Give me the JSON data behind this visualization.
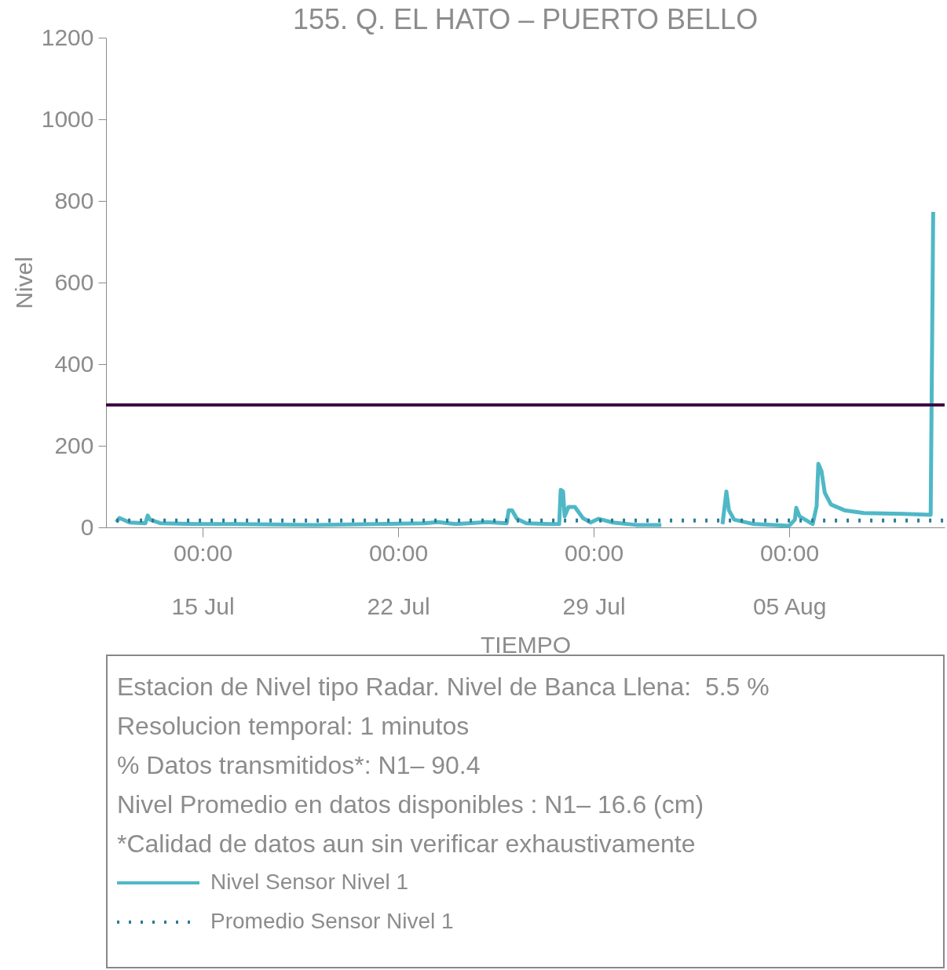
{
  "chart_data": {
    "type": "line",
    "title": "155. Q. EL HATO – PUERTO BELLO",
    "xlabel": "TIEMPO",
    "ylabel": "Nivel",
    "x": [
      "--07-11T21:50",
      "--07-12T00:30",
      "--07-12T09:20",
      "--07-12T22:50",
      "--07-13T00:50",
      "--07-13T02:50",
      "--07-13T12:10",
      "--07-14T18:40",
      "--07-16T04:20",
      "--07-18T23:50",
      "--07-21T05:50",
      "--07-22T22:20",
      "--07-23T10:20",
      "--07-24T01:10",
      "--07-25T04:20",
      "--07-25T21:10",
      "--07-25T23:00",
      "--07-26T01:50",
      "--07-26T06:00",
      "--07-26T14:00",
      "--07-27T10:20",
      "--07-27T18:20",
      "--07-27T19:40",
      "--07-27T21:40",
      "--07-27T23:00",
      "--07-28T02:20",
      "--07-28T07:50",
      "--07-28T14:40",
      "--07-28T21:20",
      "--07-29T04:10",
      "--07-29T16:20",
      "--07-30T12:30",
      "--07-31T10:05",
      "--08-01T08:20",
      "--08-02T14:40",
      "--08-02T18:00",
      "--08-02T20:10",
      "--08-03T00:40",
      "--08-03T17:40",
      "--08-05T00:00",
      "--08-05T04:50",
      "--08-05T06:00",
      "--08-05T08:50",
      "--08-05T20:10",
      "--08-05T23:30",
      "--08-06T01:00",
      "--08-06T03:40",
      "--08-06T06:30",
      "--08-06T11:50",
      "--08-06T23:20",
      "--08-07T16:10",
      "--08-09T02:00",
      "--08-10T01:30",
      "--08-10T03:40"
    ],
    "series": [
      {
        "name": "Nivel Sensor Nivel 1",
        "color": "#4fb8c6",
        "line_style": "solid",
        "values": [
          13,
          23,
          12,
          10,
          29,
          19,
          10,
          8,
          8,
          6,
          8,
          10,
          13,
          8,
          13,
          10,
          42,
          42,
          21,
          10,
          8,
          8,
          92,
          88,
          27,
          50,
          50,
          23,
          12,
          21,
          12,
          6,
          6,
          null,
          8,
          88,
          42,
          19,
          8,
          4,
          19,
          48,
          27,
          8,
          52,
          156,
          138,
          85,
          56,
          42,
          35,
          33,
          31,
          773
        ]
      },
      {
        "name": "Promedio Sensor Nivel 1",
        "color": "#2b7a94",
        "line_style": "dotted",
        "x": [
          "--07-11T21:50",
          "--08-10T13:30"
        ],
        "values": [
          16.6,
          16.6
        ]
      }
    ],
    "ref_lines": [
      {
        "axis": "y",
        "value": 300,
        "color": "#3c0b47"
      }
    ],
    "xlim": [
      "--07-11T13:00",
      "--08-10T13:30"
    ],
    "xticks": [
      {
        "value": "--07-15T00:00",
        "label": "00:00\n15 Jul"
      },
      {
        "value": "--07-22T00:00",
        "label": "00:00\n22 Jul"
      },
      {
        "value": "--07-29T00:00",
        "label": "00:00\n29 Jul"
      },
      {
        "value": "--08-05T00:00",
        "label": "00:00\n05 Aug"
      }
    ],
    "ylim": [
      0,
      1200
    ],
    "yticks": [
      0,
      200,
      400,
      600,
      800,
      1000,
      1200
    ],
    "grid": false,
    "legend": "bottom",
    "annotations": [
      "Estacion de Nivel tipo Radar. Nivel de Banca Llena:  5.5 %",
      "Resolucion temporal: 1 minutos",
      "% Datos transmitidos*: N1– 90.4",
      "Nivel Promedio en datos disponibles : N1– 16.6 (cm)",
      "*Calidad de datos aun sin verificar exhaustivamente"
    ]
  }
}
